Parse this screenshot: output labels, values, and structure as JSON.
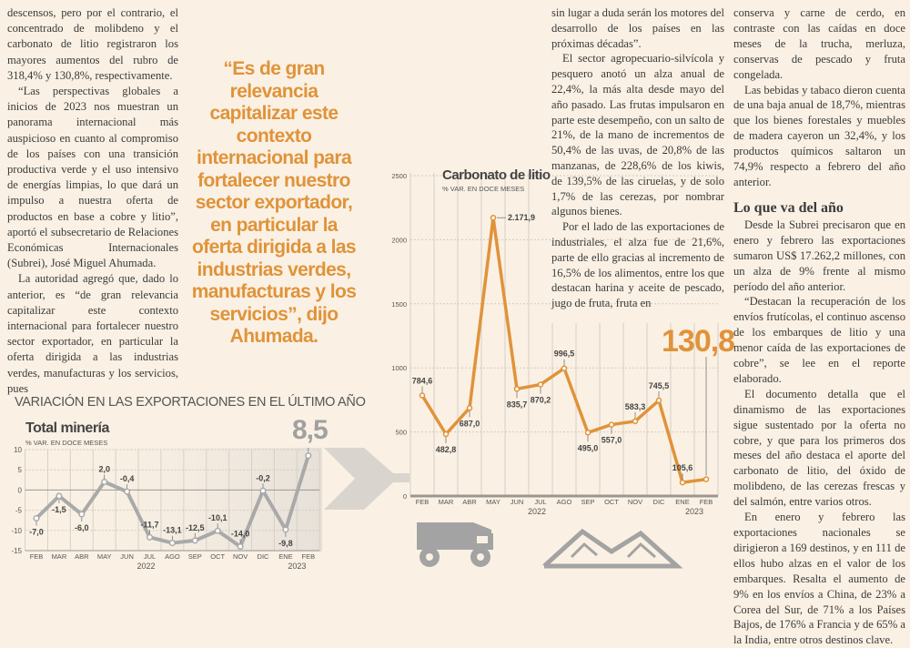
{
  "article": {
    "col1": [
      "descensos, pero por el contrario, el concentrado de molibdeno y el carbonato de litio registraron los mayores aumentos del rubro de 318,4% y 130,8%, respectivamente.",
      "“Las perspectivas globales a inicios de 2023 nos muestran un panorama internacional más auspicioso en cuanto al compromiso de los países con una transición productiva verde y el uso intensivo de energías limpias, lo que dará un impulso a nuestra oferta de productos en base a cobre y litio”, aportó el subsecretario de Relaciones Económicas Internacionales (Subrei), José Miguel Ahumada.",
      "La autoridad agregó que, dado lo anterior, es “de gran relevancia capitalizar este contexto internacional para fortalecer nuestro sector exportador, en particular la oferta dirigida a las industrias verdes, manufacturas y los servicios, pues"
    ],
    "quote": "“Es de gran relevancia capitalizar este contexto internacional para fortalecer nuestro sector exportador, en particular la oferta dirigida a las industrias verdes, manufacturas y los servicios”, dijo Ahumada.",
    "col3": [
      "sin lugar a duda serán los motores del desarrollo de los países en las próximas décadas”.",
      "El sector agropecuario-silvícola y pesquero anotó un alza anual de 22,4%, la más alta desde mayo del año pasado. Las frutas impulsaron en parte este desempeño, con un salto de 21%, de la mano de incrementos de 50,4% de las uvas, de 20,8% de las manzanas, de 228,6% de los kiwis, de 139,5% de las ciruelas, y de solo 1,7% de las cerezas, por nombrar algunos bienes.",
      "Por el lado de las exportaciones de industriales, el alza fue de 21,6%, parte de ello gracias al incremento de 16,5% de los alimentos, entre los que destacan harina y aceite de pescado, jugo de fruta, fruta en"
    ],
    "col4": [
      "conserva y carne de cerdo, en contraste con las caídas en doce meses de la trucha, merluza, conservas de pescado y fruta congelada.",
      "Las bebidas y tabaco dieron cuenta de una baja anual de 18,7%, mientras que los bienes forestales y muebles de madera cayeron un 32,4%, y los productos químicos saltaron un 74,9% respecto a febrero del año anterior."
    ],
    "subheading": "Lo que va del año",
    "col4b": [
      "Desde la Subrei precisaron que en enero y febrero las exportaciones sumaron US$ 17.262,2 millones, con un alza de 9% frente al mismo período del año anterior.",
      "“Destacan la recuperación de los envíos frutícolas, el continuo ascenso de los embarques de litio y una menor caída de las exportaciones de cobre”, se lee en el reporte elaborado.",
      "El documento detalla que el dinamismo de las exportaciones sigue sustentado por la oferta no cobre, y que para los primeros dos meses del año destaca el aporte del carbonato de litio, del óxido de molibdeno, de las cerezas frescas y del salmón, entre varios otros.",
      "En enero y febrero las exportaciones nacionales se dirigieron a 169 destinos, y en 111 de ellos hubo alzas en el valor de los embarques. Resalta el aumento de 9% en los envíos a China, de 23% a Corea del Sur, de 71% a los Países Bajos, de 176% a Francia y de 65% a la India, entre otros destinos clave."
    ]
  },
  "infographic": {
    "heading": "VARIACIÓN EN LAS EXPORTACIONES EN EL ÚLTIMO AÑO",
    "icons": [
      "dump-truck-icon",
      "mountains-icon"
    ],
    "colors": {
      "mining": "#a9a9a9",
      "lithium": "#e0933a",
      "quote": "#e0933a"
    }
  },
  "chart_data": [
    {
      "type": "line",
      "title": "Total minería",
      "subtitle": "% VAR. EN DOCE MESES",
      "categories": [
        "FEB",
        "MAR",
        "ABR",
        "MAY",
        "JUN",
        "JUL",
        "AGO",
        "SEP",
        "OCT",
        "NOV",
        "DIC",
        "ENE",
        "FEB"
      ],
      "years": [
        "2022",
        "2023"
      ],
      "values": [
        -7.0,
        -1.5,
        -6.0,
        2.0,
        -0.4,
        -11.7,
        -13.1,
        -12.5,
        -10.1,
        -14.0,
        -0.2,
        -9.8,
        8.5
      ],
      "labels": [
        "-7,0",
        "-1,5",
        "-6,0",
        "2,0",
        "-0,4",
        "-11,7",
        "-13,1",
        "-12,5",
        "-10,1",
        "-14,0",
        "-0,2",
        "-9,8",
        "8,5"
      ],
      "yticks": [
        "10",
        "5",
        "0",
        "-5",
        "-10",
        "-15"
      ],
      "ylim": [
        -15,
        10
      ],
      "grid": true,
      "color": "#a9a9a9"
    },
    {
      "type": "line",
      "title": "Carbonato de litio",
      "subtitle": "% VAR. EN DOCE MESES",
      "categories": [
        "FEB",
        "MAR",
        "ABR",
        "MAY",
        "JUN",
        "JUL",
        "AGO",
        "SEP",
        "OCT",
        "NOV",
        "DIC",
        "ENE",
        "FEB"
      ],
      "years": [
        "2022",
        "2023"
      ],
      "values": [
        784.6,
        482.8,
        687.0,
        2171.9,
        835.7,
        870.2,
        996.5,
        495.0,
        557.0,
        583.3,
        745.5,
        105.6,
        130.8
      ],
      "labels": [
        "784,6",
        "482,8",
        "687,0",
        "2.171,9",
        "835,7",
        "870,2",
        "996,5",
        "495,0",
        "557,0",
        "583,3",
        "745,5",
        "105,6",
        "130,8"
      ],
      "yticks": [
        "2500",
        "2000",
        "1500",
        "1000",
        "500",
        "0"
      ],
      "ylim": [
        0,
        2500
      ],
      "grid": true,
      "color": "#e0933a"
    }
  ]
}
